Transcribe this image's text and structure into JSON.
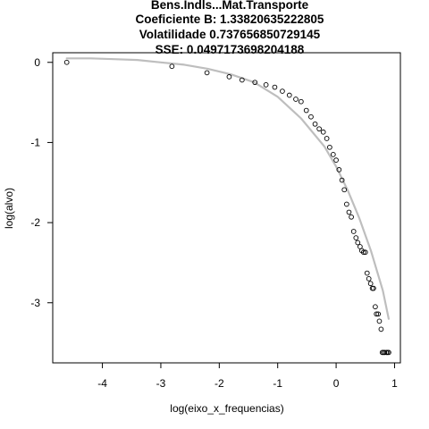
{
  "chart_data": {
    "type": "scatter",
    "title_lines": [
      "Bens.Indls...Mat.Transporte",
      "Coeficiente B:  1.33820635222805",
      "Volatilidade 0.737656850729145",
      "SSE: 0.0497173698204188"
    ],
    "xlabel": "log(eixo_x_frequencias)",
    "ylabel": "log(alvo)",
    "xlim": [
      -4.85,
      1.1
    ],
    "ylim": [
      -3.75,
      0.12
    ],
    "x_ticks": [
      -4,
      -3,
      -2,
      -1,
      0,
      1
    ],
    "y_ticks": [
      0,
      -1,
      -2,
      -3
    ],
    "x_tick_labels": [
      "-4",
      "-3",
      "-2",
      "-1",
      "0",
      "1"
    ],
    "y_tick_labels": [
      "0",
      "-1",
      "-2",
      "-3"
    ],
    "grid": false,
    "series": [
      {
        "kind": "points",
        "marker": "open-circle",
        "color": "#000000",
        "x": [
          -4.61,
          -2.81,
          -2.21,
          -1.83,
          -1.61,
          -1.39,
          -1.2,
          -1.05,
          -0.92,
          -0.8,
          -0.69,
          -0.6,
          -0.51,
          -0.43,
          -0.36,
          -0.29,
          -0.22,
          -0.16,
          -0.11,
          -0.05,
          0.0,
          0.05,
          0.1,
          0.14,
          0.18,
          0.22,
          0.26,
          0.3,
          0.34,
          0.37,
          0.41,
          0.44,
          0.47,
          0.5,
          0.53,
          0.56,
          0.59,
          0.62,
          0.64,
          0.67,
          0.69,
          0.72,
          0.74,
          0.77,
          0.79,
          0.81,
          0.83,
          0.86,
          0.88,
          0.9
        ],
        "y": [
          0.0,
          -0.05,
          -0.13,
          -0.18,
          -0.22,
          -0.25,
          -0.28,
          -0.31,
          -0.36,
          -0.41,
          -0.46,
          -0.49,
          -0.6,
          -0.68,
          -0.77,
          -0.83,
          -0.87,
          -0.95,
          -1.06,
          -1.15,
          -1.22,
          -1.34,
          -1.47,
          -1.59,
          -1.77,
          -1.87,
          -1.93,
          -2.11,
          -2.19,
          -2.25,
          -2.3,
          -2.35,
          -2.37,
          -2.37,
          -2.63,
          -2.7,
          -2.76,
          -2.82,
          -2.82,
          -3.05,
          -3.14,
          -3.14,
          -3.23,
          -3.33,
          -3.62,
          -3.62,
          -3.62,
          -3.62,
          -3.62,
          -3.62
        ]
      },
      {
        "kind": "line",
        "color": "#bebebe",
        "x": [
          -4.61,
          -4.2,
          -3.8,
          -3.4,
          -3.0,
          -2.6,
          -2.2,
          -1.8,
          -1.4,
          -1.0,
          -0.6,
          -0.2,
          0.0,
          0.2,
          0.4,
          0.6,
          0.8,
          0.9
        ],
        "y": [
          0.05,
          0.05,
          0.04,
          0.03,
          0.0,
          -0.03,
          -0.08,
          -0.15,
          -0.25,
          -0.43,
          -0.7,
          -1.05,
          -1.3,
          -1.6,
          -1.95,
          -2.36,
          -2.85,
          -3.2
        ]
      }
    ]
  }
}
